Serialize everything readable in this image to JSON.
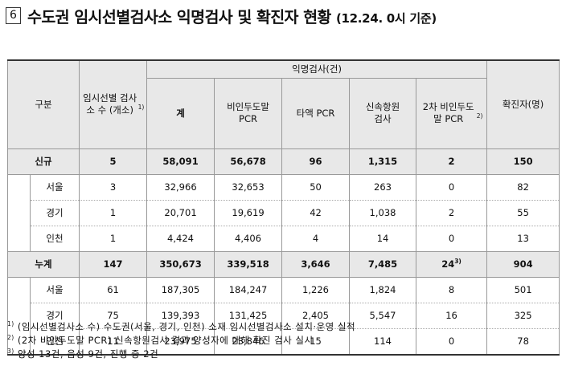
{
  "title": {
    "number": "6",
    "text": "수도권 임시선별검사소 익명검사 및 확진자 현황",
    "date": "(12.24. 0시 기준)"
  },
  "headers": {
    "category": "구분",
    "sites": "임시선별 검사소 수 (개소)",
    "sites_note": "1)",
    "anon_group": "익명검사(건)",
    "total": "계",
    "nasal_pcr": "비인두도말 PCR",
    "saliva_pcr": "타액 PCR",
    "rapid": "신속항원 검사",
    "second_pcr": "2차 비인두도말 PCR",
    "second_pcr_note": "2)",
    "confirmed": "확진자(명)"
  },
  "rows": [
    {
      "label": "신규",
      "sites": "5",
      "total": "58,091",
      "nasal": "56,678",
      "saliva": "96",
      "rapid": "1,315",
      "second": "2",
      "confirmed": "150"
    },
    {
      "label": "서울",
      "sites": "3",
      "total": "32,966",
      "nasal": "32,653",
      "saliva": "50",
      "rapid": "263",
      "second": "0",
      "confirmed": "82"
    },
    {
      "label": "경기",
      "sites": "1",
      "total": "20,701",
      "nasal": "19,619",
      "saliva": "42",
      "rapid": "1,038",
      "second": "2",
      "confirmed": "55"
    },
    {
      "label": "인천",
      "sites": "1",
      "total": "4,424",
      "nasal": "4,406",
      "saliva": "4",
      "rapid": "14",
      "second": "0",
      "confirmed": "13"
    },
    {
      "label": "누계",
      "sites": "147",
      "total": "350,673",
      "nasal": "339,518",
      "saliva": "3,646",
      "rapid": "7,485",
      "second": "24",
      "second_note": "3)",
      "confirmed": "904"
    },
    {
      "label": "서울",
      "sites": "61",
      "total": "187,305",
      "nasal": "184,247",
      "saliva": "1,226",
      "rapid": "1,824",
      "second": "8",
      "confirmed": "501"
    },
    {
      "label": "경기",
      "sites": "75",
      "total": "139,393",
      "nasal": "131,425",
      "saliva": "2,405",
      "rapid": "5,547",
      "second": "16",
      "confirmed": "325"
    },
    {
      "label": "인천",
      "sites": "11",
      "total": "23,975",
      "nasal": "23,846",
      "saliva": "15",
      "rapid": "114",
      "second": "0",
      "confirmed": "78"
    }
  ],
  "notes": [
    {
      "mark": "1)",
      "text": " (임시선별검사소 수) 수도권(서울, 경기, 인천) 소재 임시선별검사소 설치·운영 실적"
    },
    {
      "mark": "2)",
      "text": " (2차 비인두도말 PCR) 신속항원검사 결과 양성자에 대해 확진 검사 실시"
    },
    {
      "mark": "3)",
      "text": " 양성 13건, 음성 9건, 진행 중 2건"
    }
  ]
}
